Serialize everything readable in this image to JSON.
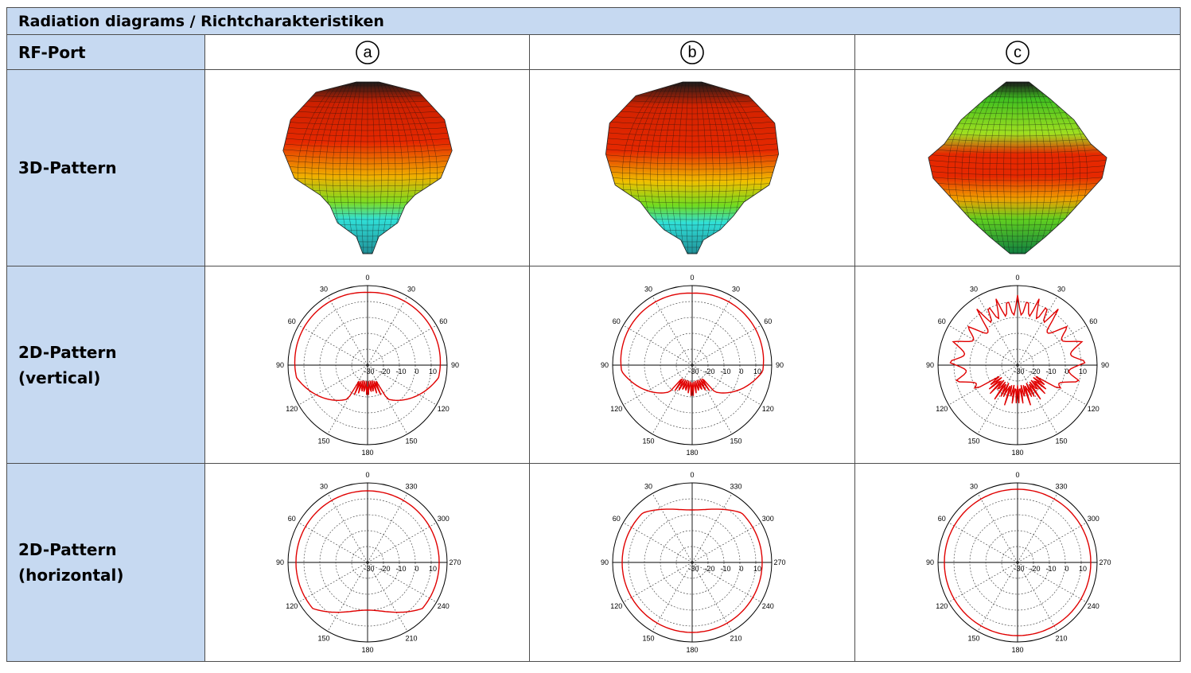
{
  "table": {
    "title": "Radiation diagrams / Richtcharakteristiken",
    "port_header": "RF-Port",
    "ports": [
      "a",
      "b",
      "c"
    ],
    "rows": {
      "pattern3d": "3D-Pattern",
      "vertical_1": "2D-Pattern",
      "vertical_2": "(vertical)",
      "horizontal_1": "2D-Pattern",
      "horizontal_2": "(horizontal)"
    }
  },
  "polar": {
    "ring_labels": [
      "-30",
      "-20",
      "-10",
      "0",
      "10"
    ],
    "vertical_angle_labels": [
      "0",
      "30",
      "30",
      "60",
      "60",
      "90",
      "90",
      "120",
      "120",
      "150",
      "150",
      "180"
    ],
    "horizontal_angle_labels": [
      "0",
      "30",
      "330",
      "60",
      "300",
      "90",
      "270",
      "120",
      "240",
      "150",
      "210",
      "180"
    ]
  },
  "colors": {
    "header_bg": "#c6d9f1",
    "border": "#4d4d4d",
    "pattern_line": "#e00000"
  }
}
